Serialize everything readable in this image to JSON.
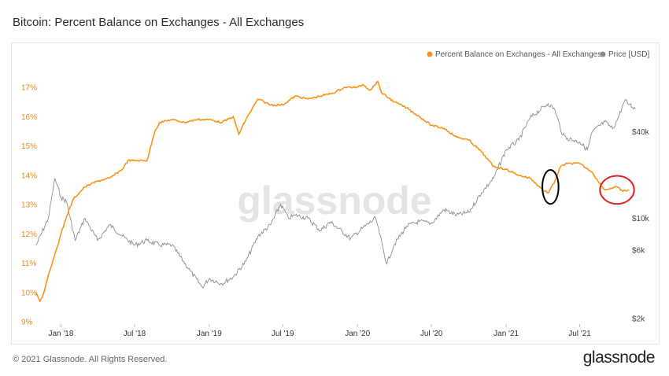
{
  "title": "Bitcoin: Percent Balance on Exchanges - All Exchanges",
  "footer": {
    "copyright": "© 2021 Glassnode. All Rights Reserved.",
    "brand": "glassnode"
  },
  "watermark": "glassnode",
  "colors": {
    "balance": "#f7931a",
    "price": "#8c8c8c",
    "left_axis": "#e08a1e",
    "annotation_black": "#000000",
    "annotation_red": "#e02020"
  },
  "chart_data": {
    "type": "line",
    "title": "Bitcoin: Percent Balance on Exchanges - All Exchanges",
    "legend": [
      "Percent Balance on Exchanges - All Exchanges",
      "Price [USD]"
    ],
    "legend_position": "top-right",
    "x_range": [
      "2017-11-01",
      "2021-11-01"
    ],
    "x_ticks": [
      "Jan '18",
      "Jul '18",
      "Jan '19",
      "Jul '19",
      "Jan '20",
      "Jul '20",
      "Jan '21",
      "Jul '21"
    ],
    "x_tick_dates": [
      "2018-01-01",
      "2018-07-01",
      "2019-01-01",
      "2019-07-01",
      "2020-01-01",
      "2020-07-01",
      "2021-01-01",
      "2021-07-01"
    ],
    "y_left": {
      "label": "",
      "range": [
        9,
        17.8
      ],
      "ticks": [
        "9%",
        "10%",
        "11%",
        "12%",
        "13%",
        "14%",
        "15%",
        "16%",
        "17%"
      ],
      "tick_values": [
        9,
        10,
        11,
        12,
        13,
        14,
        15,
        16,
        17
      ]
    },
    "y_right": {
      "label": "",
      "scale": "log",
      "ticks": [
        "$2k",
        "$6k",
        "$10k",
        "$40k"
      ],
      "tick_values": [
        2000,
        6000,
        10000,
        40000
      ],
      "range": [
        1900,
        100000
      ]
    },
    "grid": false,
    "series": [
      {
        "name": "Percent Balance on Exchanges - All Exchanges",
        "axis": "left",
        "points": [
          [
            "2017-11-01",
            10.0
          ],
          [
            "2017-11-10",
            9.7
          ],
          [
            "2017-11-20",
            10.0
          ],
          [
            "2017-12-01",
            10.6
          ],
          [
            "2017-12-15",
            11.2
          ],
          [
            "2018-01-01",
            12.0
          ],
          [
            "2018-01-15",
            12.6
          ],
          [
            "2018-02-01",
            13.2
          ],
          [
            "2018-02-15",
            13.4
          ],
          [
            "2018-03-01",
            13.6
          ],
          [
            "2018-04-01",
            13.8
          ],
          [
            "2018-05-01",
            13.9
          ],
          [
            "2018-06-01",
            14.2
          ],
          [
            "2018-06-15",
            14.5
          ],
          [
            "2018-07-01",
            14.5
          ],
          [
            "2018-08-01",
            14.5
          ],
          [
            "2018-08-20",
            15.5
          ],
          [
            "2018-09-01",
            15.8
          ],
          [
            "2018-10-01",
            15.9
          ],
          [
            "2018-11-01",
            15.8
          ],
          [
            "2018-12-01",
            15.9
          ],
          [
            "2019-01-01",
            15.9
          ],
          [
            "2019-02-01",
            15.8
          ],
          [
            "2019-03-01",
            16.0
          ],
          [
            "2019-03-15",
            15.4
          ],
          [
            "2019-04-01",
            15.9
          ],
          [
            "2019-05-01",
            16.6
          ],
          [
            "2019-06-01",
            16.4
          ],
          [
            "2019-07-01",
            16.4
          ],
          [
            "2019-08-01",
            16.7
          ],
          [
            "2019-09-01",
            16.6
          ],
          [
            "2019-10-01",
            16.7
          ],
          [
            "2019-11-01",
            16.8
          ],
          [
            "2019-12-01",
            17.0
          ],
          [
            "2020-01-01",
            17.0
          ],
          [
            "2020-01-15",
            17.1
          ],
          [
            "2020-02-01",
            16.9
          ],
          [
            "2020-02-20",
            17.2
          ],
          [
            "2020-03-01",
            16.8
          ],
          [
            "2020-04-01",
            16.5
          ],
          [
            "2020-05-01",
            16.3
          ],
          [
            "2020-06-01",
            16.0
          ],
          [
            "2020-07-01",
            15.7
          ],
          [
            "2020-08-01",
            15.6
          ],
          [
            "2020-09-01",
            15.3
          ],
          [
            "2020-10-01",
            15.2
          ],
          [
            "2020-11-01",
            14.8
          ],
          [
            "2020-12-01",
            14.3
          ],
          [
            "2021-01-01",
            14.2
          ],
          [
            "2021-02-01",
            14.0
          ],
          [
            "2021-03-01",
            13.9
          ],
          [
            "2021-04-01",
            13.5
          ],
          [
            "2021-04-15",
            13.4
          ],
          [
            "2021-05-01",
            13.8
          ],
          [
            "2021-05-15",
            14.3
          ],
          [
            "2021-06-01",
            14.4
          ],
          [
            "2021-07-01",
            14.4
          ],
          [
            "2021-08-01",
            14.1
          ],
          [
            "2021-08-15",
            13.8
          ],
          [
            "2021-09-01",
            13.5
          ],
          [
            "2021-09-15",
            13.55
          ],
          [
            "2021-10-01",
            13.6
          ],
          [
            "2021-10-15",
            13.45
          ],
          [
            "2021-10-31",
            13.5
          ]
        ]
      },
      {
        "name": "Price [USD]",
        "axis": "right",
        "points": [
          [
            "2017-11-01",
            6500
          ],
          [
            "2017-12-01",
            10000
          ],
          [
            "2017-12-17",
            19000
          ],
          [
            "2018-01-01",
            14000
          ],
          [
            "2018-01-15",
            13000
          ],
          [
            "2018-02-05",
            7000
          ],
          [
            "2018-03-01",
            10000
          ],
          [
            "2018-04-01",
            7000
          ],
          [
            "2018-05-01",
            9000
          ],
          [
            "2018-06-01",
            7500
          ],
          [
            "2018-07-01",
            6500
          ],
          [
            "2018-08-01",
            7000
          ],
          [
            "2018-09-01",
            6500
          ],
          [
            "2018-10-01",
            6500
          ],
          [
            "2018-11-15",
            4300
          ],
          [
            "2018-12-15",
            3300
          ],
          [
            "2019-01-01",
            3800
          ],
          [
            "2019-02-01",
            3500
          ],
          [
            "2019-03-01",
            3900
          ],
          [
            "2019-04-01",
            5000
          ],
          [
            "2019-05-01",
            7500
          ],
          [
            "2019-06-01",
            9000
          ],
          [
            "2019-06-26",
            12500
          ],
          [
            "2019-07-15",
            10000
          ],
          [
            "2019-08-01",
            10500
          ],
          [
            "2019-09-01",
            10000
          ],
          [
            "2019-10-01",
            8200
          ],
          [
            "2019-10-26",
            9400
          ],
          [
            "2019-11-15",
            8500
          ],
          [
            "2019-12-15",
            7200
          ],
          [
            "2020-01-15",
            8600
          ],
          [
            "2020-02-15",
            10000
          ],
          [
            "2020-03-13",
            4800
          ],
          [
            "2020-04-01",
            6600
          ],
          [
            "2020-05-01",
            8800
          ],
          [
            "2020-06-01",
            9500
          ],
          [
            "2020-07-01",
            9200
          ],
          [
            "2020-08-01",
            11500
          ],
          [
            "2020-09-01",
            10500
          ],
          [
            "2020-10-01",
            11000
          ],
          [
            "2020-11-01",
            15000
          ],
          [
            "2020-12-01",
            19000
          ],
          [
            "2021-01-01",
            30000
          ],
          [
            "2021-02-01",
            35000
          ],
          [
            "2021-03-01",
            50000
          ],
          [
            "2021-04-14",
            63000
          ],
          [
            "2021-05-01",
            57000
          ],
          [
            "2021-05-20",
            38000
          ],
          [
            "2021-06-01",
            36000
          ],
          [
            "2021-07-01",
            34000
          ],
          [
            "2021-07-20",
            30000
          ],
          [
            "2021-08-01",
            40000
          ],
          [
            "2021-09-01",
            47000
          ],
          [
            "2021-09-20",
            42000
          ],
          [
            "2021-10-01",
            48000
          ],
          [
            "2021-10-20",
            66000
          ],
          [
            "2021-11-01",
            62000
          ],
          [
            "2021-11-15",
            58000
          ]
        ]
      }
    ],
    "annotations": [
      {
        "shape": "ellipse",
        "color": "black",
        "center": [
          "2021-04-20",
          13.6
        ],
        "rx_days": 20,
        "ry_value": 0.58
      },
      {
        "shape": "ellipse",
        "color": "red",
        "center": [
          "2021-10-01",
          13.5
        ],
        "rx_days": 42,
        "ry_value": 0.48
      }
    ]
  }
}
